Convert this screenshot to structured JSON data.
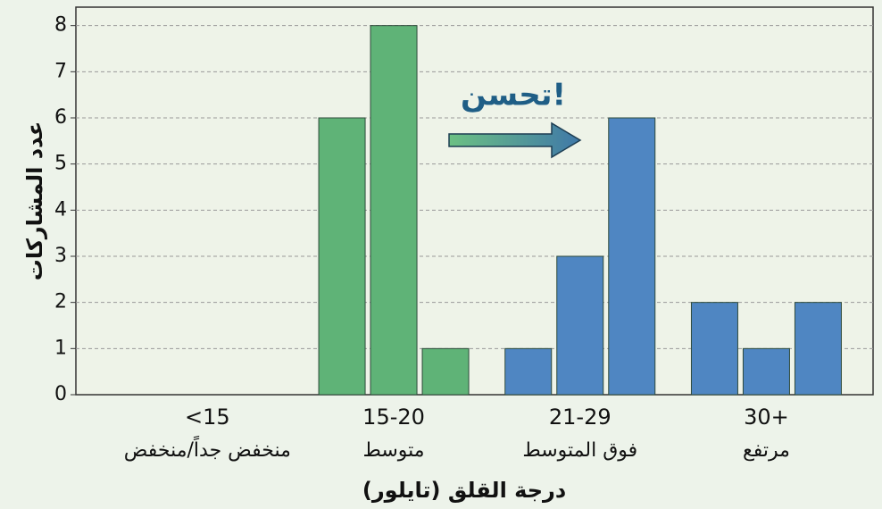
{
  "chart_data": {
    "type": "bar",
    "categories": [
      "<15",
      "15-20",
      "21-29",
      "30+"
    ],
    "category_descriptions": [
      "منخفض جداً/منخفض",
      "متوسط",
      "فوق المتوسط",
      "مرتفع"
    ],
    "values": [
      [
        null,
        null,
        null
      ],
      [
        6,
        8,
        1
      ],
      [
        1,
        3,
        6
      ],
      [
        2,
        1,
        2
      ]
    ],
    "colors": [
      null,
      "#5fb377",
      "#4f86c2",
      "#4f86c2"
    ],
    "ylim": [
      0,
      8.4
    ],
    "yticks": [
      0,
      1,
      2,
      3,
      4,
      5,
      6,
      7,
      8
    ],
    "grid": true,
    "xlabel": "درجة القلق (تايلور)",
    "ylabel": "عدد المشاركات",
    "annotation": "تحسن!"
  }
}
